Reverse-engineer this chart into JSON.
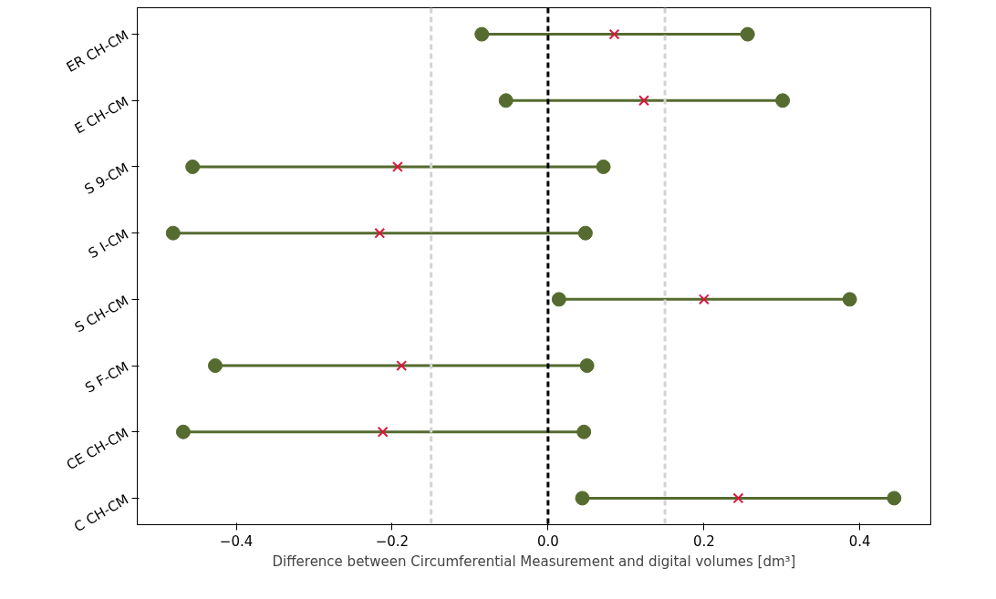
{
  "chart_data": {
    "type": "scatter",
    "orientation": "horizontal",
    "xlabel": "Difference between Circumferential Measurement and digital volumes [dm³]",
    "categories": [
      "ER CH-CM",
      "E CH-CM",
      "S 9-CM",
      "S I-CM",
      "S CH-CM",
      "S F-CM",
      "CE CH-CM",
      "C CH-CM"
    ],
    "series": [
      {
        "color": "#556b2f",
        "marker": "circle",
        "values": [
          -0.085,
          -0.054,
          -0.456,
          -0.481,
          0.014,
          -0.427,
          -0.468,
          0.044
        ]
      },
      {
        "color": "#556b2f",
        "marker": "circle",
        "values": [
          0.256,
          0.301,
          0.071,
          0.048,
          0.387,
          0.05,
          0.046,
          0.444
        ]
      },
      {
        "color": "#dc143c",
        "marker": "cross",
        "values": [
          0.085,
          0.123,
          -0.193,
          -0.216,
          0.2,
          -0.188,
          -0.212,
          0.244
        ]
      }
    ],
    "xlim": [
      -0.527,
      0.491
    ],
    "xticks": [
      {
        "value": -0.4,
        "label": "−0.4"
      },
      {
        "value": -0.2,
        "label": "−0.2"
      },
      {
        "value": 0,
        "label": "0.0"
      },
      {
        "value": 0.2,
        "label": "0.2"
      },
      {
        "value": 0.4,
        "label": "0.4"
      }
    ],
    "ref_lines": [
      {
        "axis": "x",
        "value": 0,
        "color": "#000000",
        "line_style": "dashed"
      },
      {
        "axis": "x",
        "value": -0.15,
        "color": "#d3d3d3",
        "line_style": "dashed"
      },
      {
        "axis": "x",
        "value": 0.15,
        "color": "#d3d3d3",
        "line_style": "dashed"
      }
    ],
    "grid": false
  }
}
